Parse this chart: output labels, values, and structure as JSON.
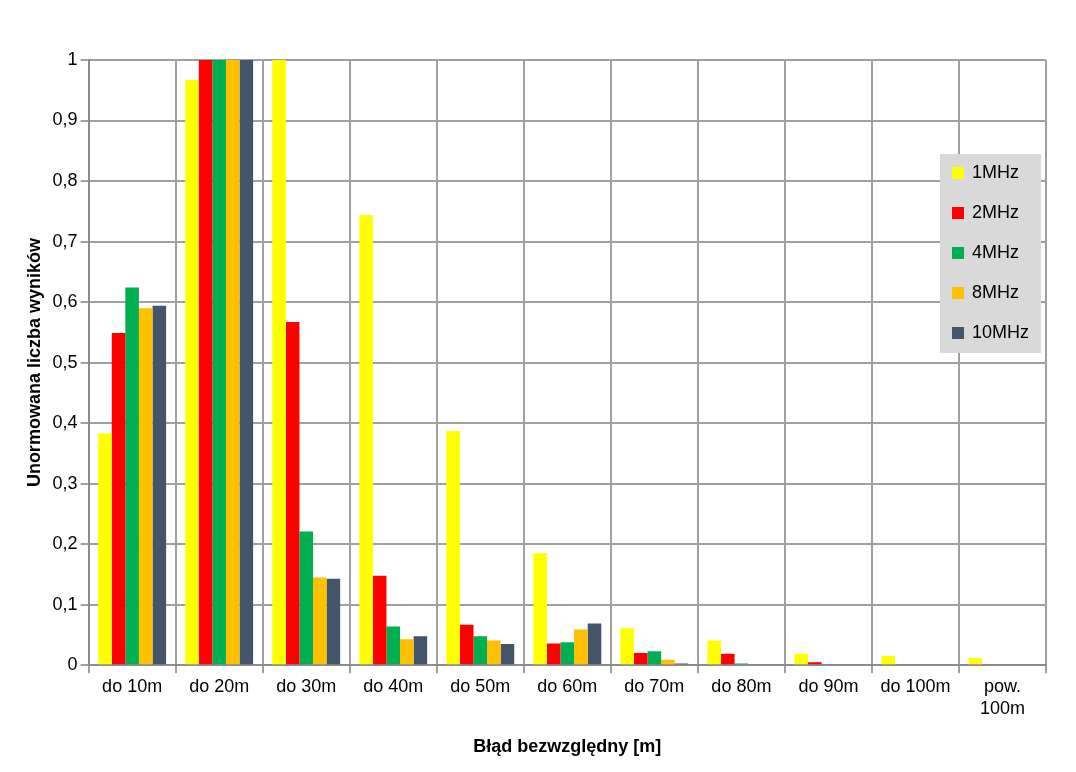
{
  "chart_data": {
    "type": "bar",
    "xlabel": "Błąd bezwzględny [m]",
    "ylabel": "Unormowana liczba wyników",
    "categories": [
      "do 10m",
      "do 20m",
      "do 30m",
      "do 40m",
      "do 50m",
      "do 60m",
      "do 70m",
      "do 80m",
      "do 90m",
      "do 100m",
      "pow. 100m"
    ],
    "series": [
      {
        "name": "1MHz",
        "color": "#ffff00",
        "values": [
          0.383,
          0.967,
          1,
          0.744,
          0.387,
          0.185,
          0.061,
          0.041,
          0.019,
          0.015,
          0.012
        ]
      },
      {
        "name": "2MHz",
        "color": "#ff0000",
        "values": [
          0.549,
          1,
          0.567,
          0.148,
          0.067,
          0.036,
          0.02,
          0.019,
          0.005,
          0,
          0
        ]
      },
      {
        "name": "4MHz",
        "color": "#00b050",
        "values": [
          0.624,
          1,
          0.221,
          0.064,
          0.048,
          0.038,
          0.023,
          0.003,
          0,
          0,
          0
        ]
      },
      {
        "name": "8MHz",
        "color": "#ffc000",
        "values": [
          0.59,
          1,
          0.145,
          0.043,
          0.041,
          0.059,
          0.009,
          0,
          0,
          0,
          0
        ]
      },
      {
        "name": "10MHz",
        "color": "#44546a",
        "values": [
          0.594,
          1,
          0.143,
          0.048,
          0.035,
          0.069,
          0.003,
          0,
          0,
          0,
          0
        ]
      }
    ],
    "ylim": [
      0,
      1
    ],
    "yticks": [
      0,
      {
        "value": 0.1,
        "label": "0,1"
      },
      {
        "value": 0.2,
        "label": "0,2"
      },
      {
        "value": 0.3,
        "label": "0,3"
      },
      {
        "value": 0.4,
        "label": "0,4"
      },
      {
        "value": 0.5,
        "label": "0,5"
      },
      {
        "value": 0.6,
        "label": "0,6"
      },
      {
        "value": 0.7,
        "label": "0,7"
      },
      {
        "value": 0.8,
        "label": "0,8"
      },
      {
        "value": 0.9,
        "label": "0,9"
      },
      1
    ],
    "grid": true,
    "legend": "right"
  }
}
